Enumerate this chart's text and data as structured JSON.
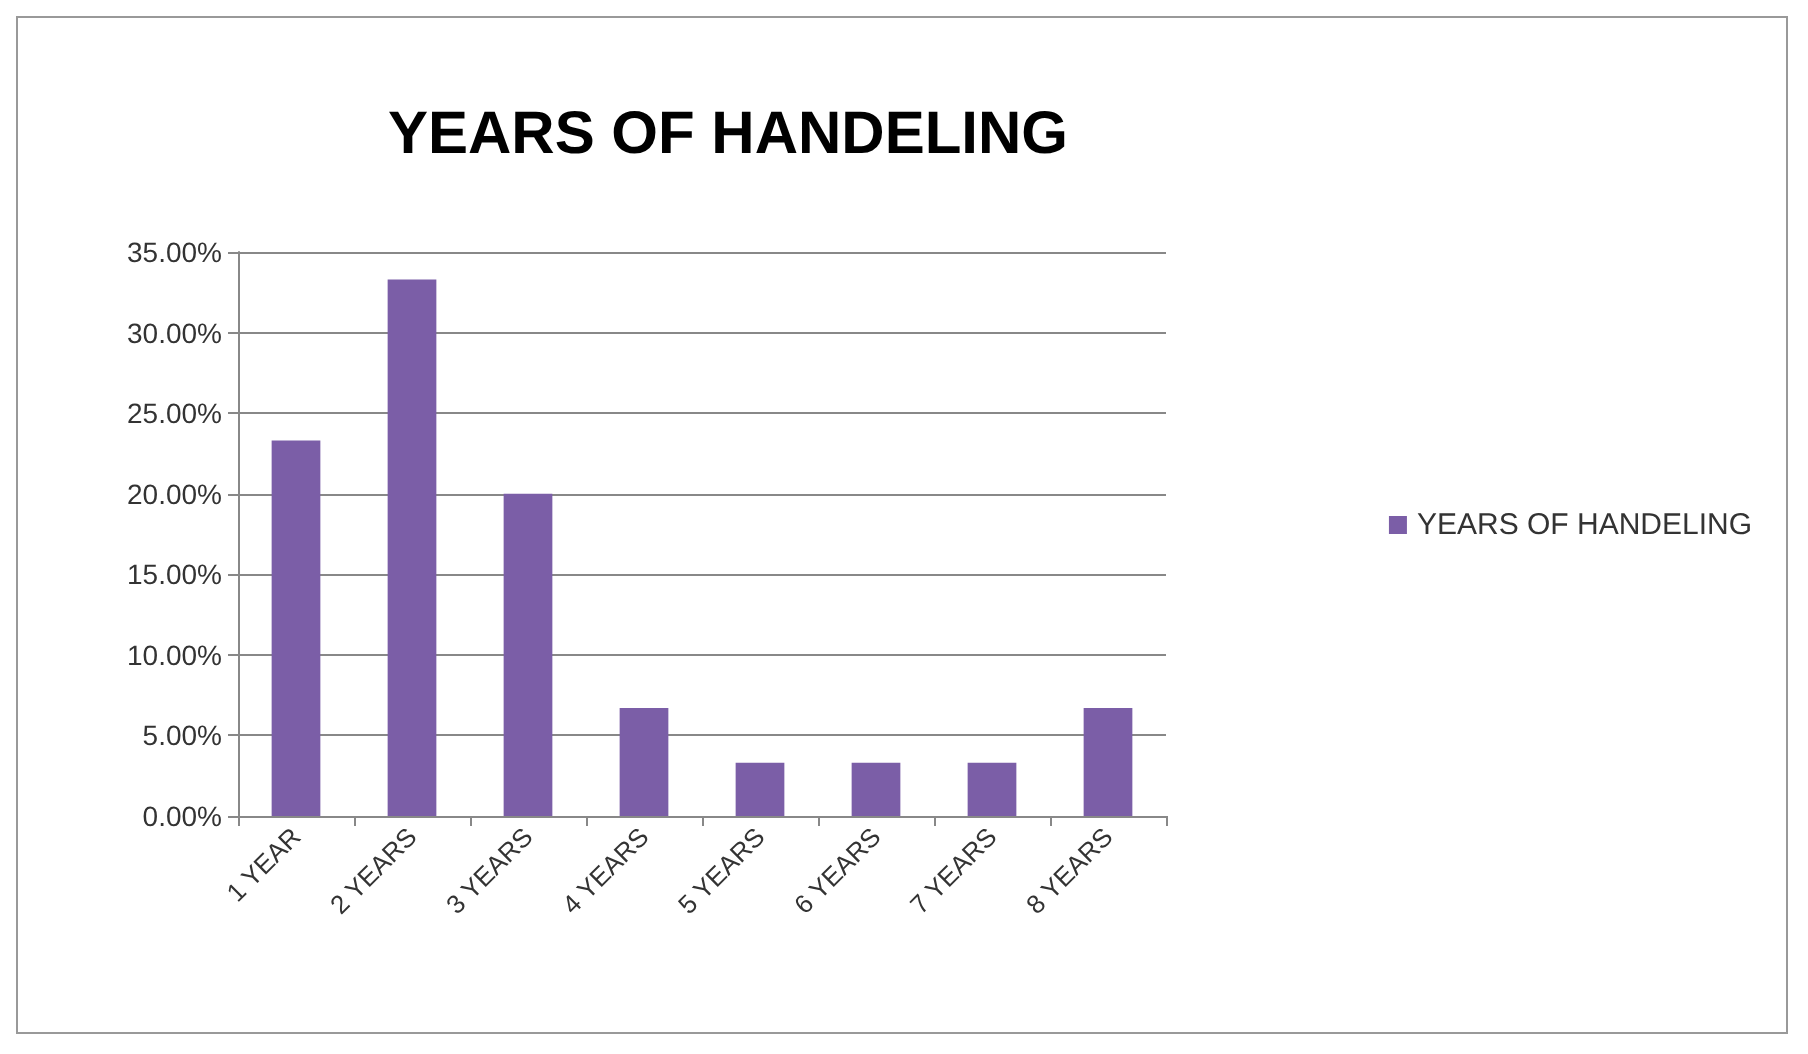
{
  "chart_data": {
    "type": "bar",
    "title": "YEARS OF HANDELING",
    "categories": [
      "1 YEAR",
      "2 YEARS",
      "3 YEARS",
      "4 YEARS",
      "5 YEARS",
      "6 YEARS",
      "7 YEARS",
      "8 YEARS"
    ],
    "series": [
      {
        "name": "YEARS OF HANDELING",
        "color": "#7b5ea7",
        "values": [
          23.3,
          33.3,
          20,
          6.7,
          3.3,
          3.3,
          3.3,
          6.7
        ]
      }
    ],
    "ylim": [
      0,
      35
    ],
    "yticks": [
      {
        "value": 0,
        "label": "0.00%"
      },
      {
        "value": 5,
        "label": "5.00%"
      },
      {
        "value": 10,
        "label": "10.00%"
      },
      {
        "value": 15,
        "label": "15.00%"
      },
      {
        "value": 20,
        "label": "20.00%"
      },
      {
        "value": 25,
        "label": "25.00%"
      },
      {
        "value": 30,
        "label": "30.00%"
      },
      {
        "value": 35,
        "label": "35.00%"
      }
    ],
    "grid": "y",
    "legend": "right"
  }
}
